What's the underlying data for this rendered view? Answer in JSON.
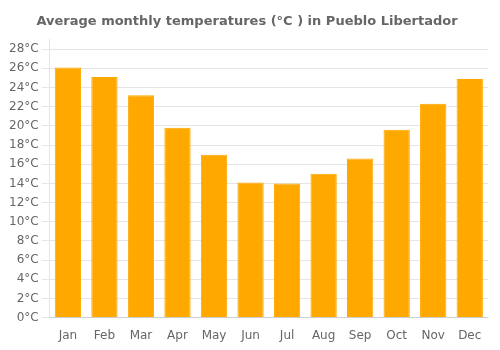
{
  "chart_data": {
    "type": "bar",
    "title": "Average monthly temperatures (°C ) in Pueblo Libertador",
    "categories": [
      "Jan",
      "Feb",
      "Mar",
      "Apr",
      "May",
      "Jun",
      "Jul",
      "Aug",
      "Sep",
      "Oct",
      "Nov",
      "Dec"
    ],
    "values": [
      26.1,
      25.1,
      23.2,
      19.8,
      17.0,
      14.1,
      14.0,
      15.0,
      16.6,
      19.6,
      22.3,
      24.9
    ],
    "color": "#FFA800",
    "ylim": [
      0,
      29
    ],
    "yticks": [
      {
        "value": 0,
        "label": "0°C"
      },
      {
        "value": 2,
        "label": "2°C"
      },
      {
        "value": 4,
        "label": "4°C"
      },
      {
        "value": 6,
        "label": "6°C"
      },
      {
        "value": 8,
        "label": "8°C"
      },
      {
        "value": 10,
        "label": "10°C"
      },
      {
        "value": 12,
        "label": "12°C"
      },
      {
        "value": 14,
        "label": "14°C"
      },
      {
        "value": 16,
        "label": "16°C"
      },
      {
        "value": 18,
        "label": "18°C"
      },
      {
        "value": 20,
        "label": "20°C"
      },
      {
        "value": 22,
        "label": "22°C"
      },
      {
        "value": 24,
        "label": "24°C"
      },
      {
        "value": 26,
        "label": "26°C"
      },
      {
        "value": 28,
        "label": "28°C"
      }
    ],
    "grid": true
  }
}
